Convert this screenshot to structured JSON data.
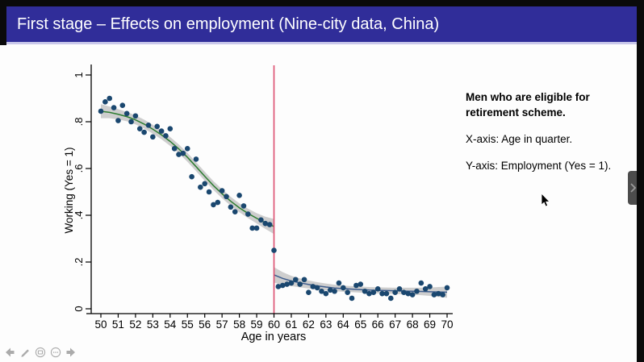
{
  "titlebar": {
    "title": "First stage – Effects on employment (Nine-city data, China)"
  },
  "annotation": {
    "bold_text": "Men who are eligible for retirement scheme.",
    "x_axis_note": "X-axis: Age in quarter.",
    "y_axis_note": "Y-axis: Employment (Yes = 1)."
  },
  "toolbar": {
    "items": [
      "previous-slide",
      "pen-tools",
      "see-all-slides",
      "more-options",
      "next-slide"
    ]
  },
  "colors": {
    "titlebar_bg": "#302d99",
    "titlebar_underline": "#c9c8ea",
    "slide_bg": "#fdfdfd",
    "scatter_dot": "#1a476f",
    "fit_left_line": "#2e7d32",
    "fit_right_line": "#3d5c8c",
    "ci_band": "#c6c6c6",
    "cutoff_line": "#dd5575",
    "axis": "#000000"
  },
  "chart_data": {
    "type": "scatter",
    "title": "",
    "xlabel": "Age in years",
    "ylabel": "Working (Yes = 1)",
    "xlim": [
      49.6,
      70.4
    ],
    "ylim": [
      0,
      1
    ],
    "grid": false,
    "x_ticks": [
      50,
      51,
      52,
      53,
      54,
      55,
      56,
      57,
      58,
      59,
      60,
      61,
      62,
      63,
      64,
      65,
      66,
      67,
      68,
      69,
      70
    ],
    "y_ticks": [
      [
        0,
        "0"
      ],
      [
        0.2,
        ".2"
      ],
      [
        0.4,
        ".4"
      ],
      [
        0.6,
        ".6"
      ],
      [
        0.8,
        ".8"
      ],
      [
        1,
        "1"
      ]
    ],
    "vline": {
      "x": 60,
      "color": "#dd5575",
      "meaning": "retirement age cutoff"
    },
    "series": [
      {
        "name": "binned-employment-rate",
        "type": "scatter",
        "color": "#1a476f",
        "points": [
          [
            50.0,
            0.845
          ],
          [
            50.25,
            0.885
          ],
          [
            50.5,
            0.9
          ],
          [
            50.75,
            0.86
          ],
          [
            51.0,
            0.805
          ],
          [
            51.25,
            0.87
          ],
          [
            51.5,
            0.835
          ],
          [
            51.75,
            0.8
          ],
          [
            52.0,
            0.825
          ],
          [
            52.25,
            0.77
          ],
          [
            52.5,
            0.755
          ],
          [
            52.75,
            0.785
          ],
          [
            53.0,
            0.735
          ],
          [
            53.25,
            0.78
          ],
          [
            53.5,
            0.76
          ],
          [
            53.75,
            0.74
          ],
          [
            54.0,
            0.77
          ],
          [
            54.25,
            0.685
          ],
          [
            54.5,
            0.66
          ],
          [
            54.75,
            0.665
          ],
          [
            55.0,
            0.685
          ],
          [
            55.25,
            0.565
          ],
          [
            55.5,
            0.64
          ],
          [
            55.75,
            0.52
          ],
          [
            56.0,
            0.535
          ],
          [
            56.25,
            0.5
          ],
          [
            56.5,
            0.445
          ],
          [
            56.75,
            0.455
          ],
          [
            57.0,
            0.505
          ],
          [
            57.25,
            0.48
          ],
          [
            57.5,
            0.435
          ],
          [
            57.75,
            0.415
          ],
          [
            58.0,
            0.485
          ],
          [
            58.25,
            0.44
          ],
          [
            58.5,
            0.405
          ],
          [
            58.75,
            0.345
          ],
          [
            59.0,
            0.345
          ],
          [
            59.25,
            0.38
          ],
          [
            59.5,
            0.365
          ],
          [
            59.75,
            0.36
          ],
          [
            60.0,
            0.25
          ],
          [
            60.25,
            0.095
          ],
          [
            60.5,
            0.1
          ],
          [
            60.75,
            0.105
          ],
          [
            61.0,
            0.11
          ],
          [
            61.25,
            0.125
          ],
          [
            61.5,
            0.105
          ],
          [
            61.75,
            0.125
          ],
          [
            62.0,
            0.07
          ],
          [
            62.25,
            0.095
          ],
          [
            62.5,
            0.09
          ],
          [
            62.75,
            0.075
          ],
          [
            63.0,
            0.065
          ],
          [
            63.25,
            0.08
          ],
          [
            63.5,
            0.075
          ],
          [
            63.75,
            0.11
          ],
          [
            64.0,
            0.09
          ],
          [
            64.25,
            0.07
          ],
          [
            64.5,
            0.045
          ],
          [
            64.75,
            0.1
          ],
          [
            65.0,
            0.105
          ],
          [
            65.25,
            0.075
          ],
          [
            65.5,
            0.065
          ],
          [
            65.75,
            0.07
          ],
          [
            66.0,
            0.085
          ],
          [
            66.25,
            0.065
          ],
          [
            66.5,
            0.065
          ],
          [
            66.75,
            0.045
          ],
          [
            67.0,
            0.07
          ],
          [
            67.25,
            0.085
          ],
          [
            67.5,
            0.07
          ],
          [
            67.75,
            0.065
          ],
          [
            68.0,
            0.06
          ],
          [
            68.25,
            0.075
          ],
          [
            68.5,
            0.11
          ],
          [
            68.75,
            0.085
          ],
          [
            69.0,
            0.095
          ],
          [
            69.25,
            0.06
          ],
          [
            69.5,
            0.065
          ],
          [
            69.75,
            0.06
          ],
          [
            70.0,
            0.09
          ]
        ]
      },
      {
        "name": "fit-left-of-cutoff",
        "type": "fit",
        "color": "#2e7d32",
        "x": [
          50,
          50.5,
          51,
          51.5,
          52,
          52.5,
          53,
          53.5,
          54,
          54.5,
          55,
          55.5,
          56,
          56.5,
          57,
          57.5,
          58,
          58.5,
          59,
          59.5,
          60
        ],
        "y": [
          0.845,
          0.84,
          0.832,
          0.822,
          0.808,
          0.79,
          0.768,
          0.744,
          0.716,
          0.684,
          0.648,
          0.608,
          0.567,
          0.527,
          0.492,
          0.46,
          0.432,
          0.408,
          0.387,
          0.368,
          0.352
        ],
        "ci": [
          0.03,
          0.025,
          0.022,
          0.02,
          0.019,
          0.019,
          0.019,
          0.019,
          0.019,
          0.019,
          0.019,
          0.019,
          0.019,
          0.019,
          0.019,
          0.019,
          0.019,
          0.02,
          0.022,
          0.026,
          0.032
        ]
      },
      {
        "name": "fit-right-of-cutoff",
        "type": "fit",
        "color": "#3d5c8c",
        "x": [
          60,
          60.5,
          61,
          61.5,
          62,
          62.5,
          63,
          63.5,
          64,
          64.5,
          65,
          65.5,
          66,
          66.5,
          67,
          67.5,
          68,
          68.5,
          69,
          69.5,
          70
        ],
        "y": [
          0.145,
          0.13,
          0.119,
          0.111,
          0.104,
          0.098,
          0.093,
          0.089,
          0.086,
          0.084,
          0.082,
          0.08,
          0.079,
          0.078,
          0.077,
          0.076,
          0.075,
          0.074,
          0.073,
          0.072,
          0.071
        ],
        "ci": [
          0.033,
          0.027,
          0.022,
          0.019,
          0.017,
          0.016,
          0.015,
          0.014,
          0.013,
          0.013,
          0.013,
          0.013,
          0.013,
          0.013,
          0.013,
          0.014,
          0.015,
          0.016,
          0.018,
          0.021,
          0.024
        ]
      }
    ]
  }
}
